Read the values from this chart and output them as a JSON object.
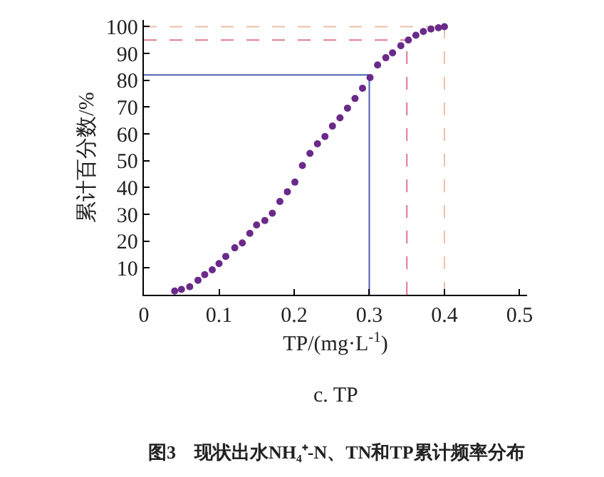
{
  "chart_data": {
    "type": "scatter",
    "xlabel": "TP/(mg·L$^{-1}$)",
    "ylabel": "累计百分数/%",
    "annotations": [
      "c. TP",
      "图3　现状出水NH₄⁺-N、TN和TP累计频率分布"
    ],
    "x": [
      0.041,
      0.05,
      0.061,
      0.072,
      0.081,
      0.091,
      0.1,
      0.109,
      0.121,
      0.131,
      0.141,
      0.15,
      0.161,
      0.171,
      0.181,
      0.191,
      0.201,
      0.211,
      0.221,
      0.231,
      0.241,
      0.251,
      0.261,
      0.271,
      0.281,
      0.291,
      0.301,
      0.311,
      0.322,
      0.331,
      0.342,
      0.352,
      0.362,
      0.372,
      0.382,
      0.392,
      0.4
    ],
    "series": [
      {
        "color": "#6a2a8a",
        "values": [
          1.4,
          2,
          3,
          5.4,
          7.5,
          9.3,
          11.6,
          14.3,
          17.5,
          19.3,
          22.9,
          26,
          27.7,
          30.4,
          34.8,
          38.4,
          42,
          48.2,
          52.7,
          56.3,
          59,
          62.9,
          66,
          69.6,
          73.2,
          77,
          81,
          85.7,
          88.4,
          90.2,
          92.9,
          95,
          96.8,
          98.2,
          99.1,
          99.6,
          100
        ]
      }
    ],
    "marker": "circle",
    "xlim": [
      0,
      0.51
    ],
    "ylim": [
      0,
      102.5
    ],
    "xticks": [
      0,
      0.1,
      0.2,
      0.3,
      0.4,
      0.5
    ],
    "yticks": [
      10,
      20,
      30,
      40,
      50,
      60,
      70,
      80,
      90,
      100
    ],
    "grid": false,
    "legend": false,
    "ref_lines": [
      {
        "axis": "y",
        "value": 82,
        "color": "#4a5fb0",
        "line_style": "solid"
      },
      {
        "axis": "x",
        "value": 0.3,
        "color": "#4a5fb0",
        "line_style": "solid"
      },
      {
        "axis": "y",
        "value": 95,
        "color": "#e07a8e",
        "line_style": "dashed"
      },
      {
        "axis": "x",
        "value": 0.35,
        "color": "#e07a8e",
        "line_style": "dashed"
      },
      {
        "axis": "y",
        "value": 100,
        "color": "#ecc0a8",
        "line_style": "dashed"
      },
      {
        "axis": "x",
        "value": 0.4,
        "color": "#ecc0a8",
        "line_style": "dashed"
      }
    ]
  }
}
